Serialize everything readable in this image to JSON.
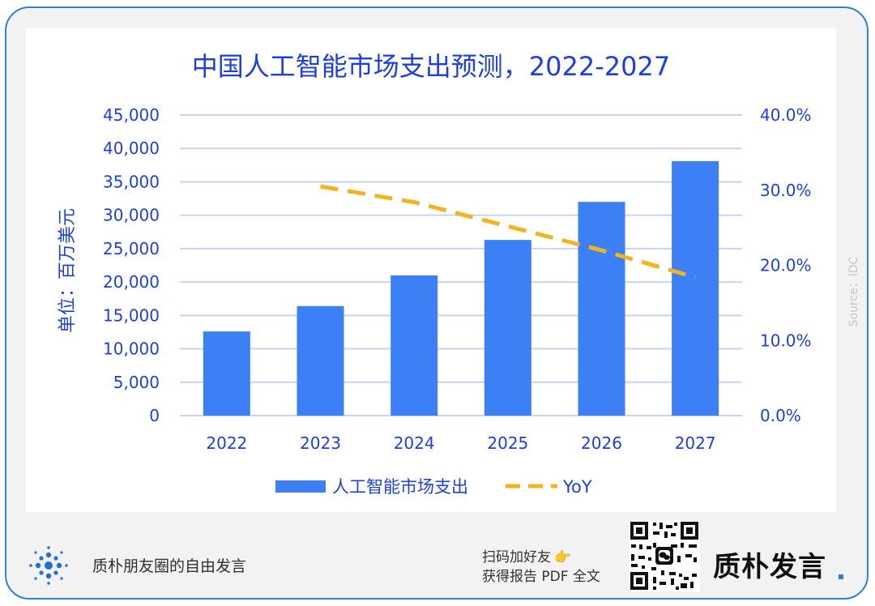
{
  "chart_data": {
    "type": "bar",
    "title": "中国人工智能市场支出预测，2022-2027",
    "ylabel": "单位：百万美元",
    "ylim": [
      0,
      45000
    ],
    "y_ticks": [
      "0",
      "5,000",
      "10,000",
      "15,000",
      "20,000",
      "25,000",
      "30,000",
      "35,000",
      "40,000",
      "45,000"
    ],
    "y2lim": [
      0,
      40
    ],
    "y2_ticks": [
      "0.0%",
      "10.0%",
      "20.0%",
      "30.0%",
      "40.0%"
    ],
    "categories": [
      "2022",
      "2023",
      "2024",
      "2025",
      "2026",
      "2027"
    ],
    "series": [
      {
        "name": "人工智能市场支出",
        "type": "bar",
        "axis": "left",
        "color": "#3d7ff5",
        "values": [
          12600,
          16400,
          21000,
          26300,
          32000,
          38100
        ]
      },
      {
        "name": "YoY",
        "type": "line",
        "axis": "right",
        "style": "dashed",
        "color": "#f2b320",
        "values": [
          null,
          30.5,
          28.4,
          25.2,
          22.0,
          18.4
        ]
      }
    ],
    "legend_position": "bottom",
    "grid": true
  },
  "source_label": "Source：IDC",
  "footer": {
    "slogan": "质朴朋友圈的自由发言",
    "cta_line1": "扫码加好友",
    "cta_line2": "获得报告 PDF 全文",
    "hand_glyph": "👉",
    "brand": "质朴发言",
    "logo_icon": "dots-circle-logo-icon",
    "qr_icon": "qr-code-icon"
  }
}
